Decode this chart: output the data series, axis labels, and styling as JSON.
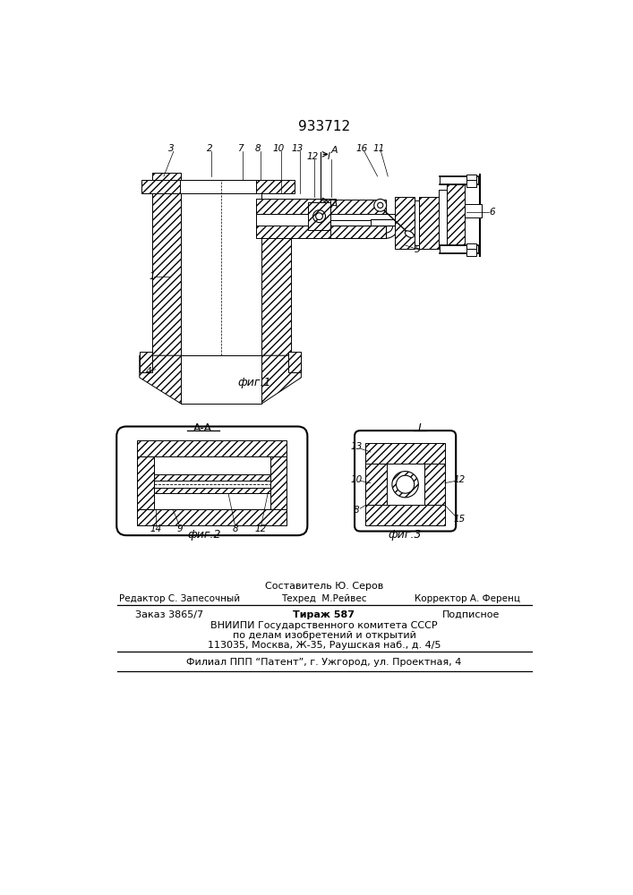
{
  "patent_number": "933712",
  "fig1_caption": "фиг.1",
  "fig2_caption": "фиг.2",
  "fig3_caption": "фиг.3",
  "section_label": "A-A",
  "view_label": "I",
  "bg_color": "#ffffff",
  "line_color": "#000000",
  "footer_line1": "Составитель Ю. Серов",
  "footer_line2_left": "Редактор С. Запесочный",
  "footer_line2_mid": "Техред  М.Рейвес",
  "footer_line2_right": "Корректор А. Ференц",
  "footer_line3_left": "Заказ 3865/7",
  "footer_line3_mid": "Тираж 587",
  "footer_line3_right": "Подписное",
  "footer_line4": "ВНИИПИ Государственного комитета СССР",
  "footer_line5": "по делам изобретений и открытий",
  "footer_line6": "113035, Москва, Ж-35, Раушская наб., д. 4/5",
  "footer_line7": "Филиал ППП “Патент”, г. Ужгород, ул. Проектная, 4"
}
